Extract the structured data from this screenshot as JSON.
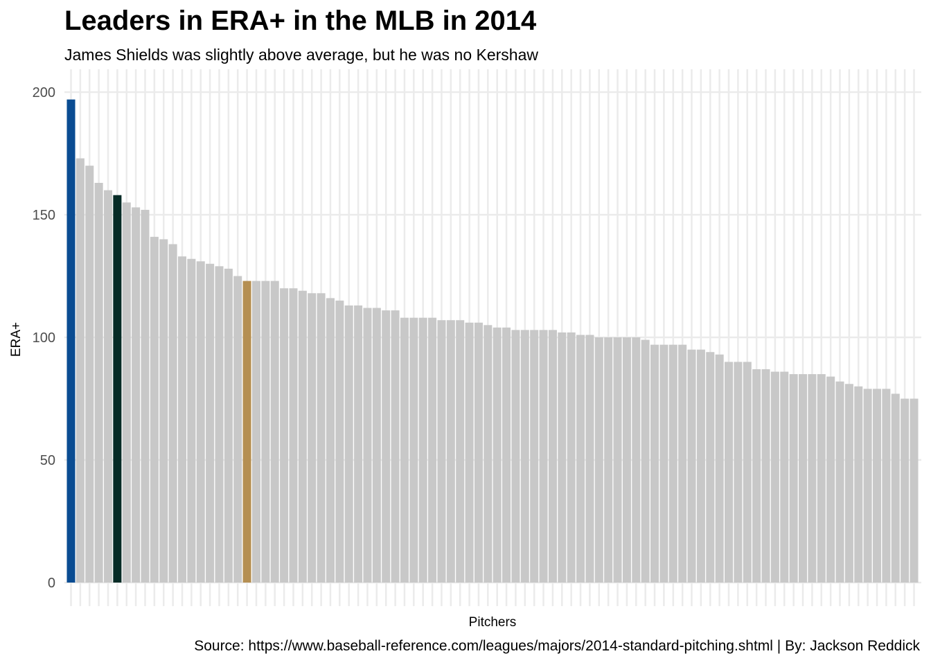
{
  "chart_data": {
    "type": "bar",
    "title": "Leaders in ERA+ in the MLB in 2014",
    "subtitle": "James Shields was slightly above average, but he was no Kershaw",
    "caption": "Source: https://www.baseball-reference.com/leagues/majors/2014-standard-pitching.shtml | By: Jackson Reddick",
    "xlabel": "Pitchers",
    "ylabel": "ERA+",
    "ylim": [
      0,
      205
    ],
    "yticks": [
      0,
      50,
      100,
      150,
      200
    ],
    "grid": true,
    "legend": "none",
    "default_color": "#c8c8c8",
    "highlight_colors": {
      "0": "#0a4c92",
      "5": "#062b26",
      "19": "#b58f52"
    },
    "values": [
      197,
      173,
      170,
      163,
      160,
      158,
      155,
      153,
      152,
      141,
      140,
      138,
      133,
      132,
      131,
      130,
      129,
      128,
      125,
      123,
      123,
      123,
      123,
      120,
      120,
      119,
      118,
      118,
      116,
      115,
      113,
      113,
      112,
      112,
      111,
      111,
      108,
      108,
      108,
      108,
      107,
      107,
      107,
      106,
      106,
      105,
      104,
      104,
      103,
      103,
      103,
      103,
      103,
      102,
      102,
      101,
      101,
      100,
      100,
      100,
      100,
      100,
      99,
      97,
      97,
      97,
      97,
      95,
      95,
      94,
      93,
      90,
      90,
      90,
      87,
      87,
      86,
      86,
      85,
      85,
      85,
      85,
      84,
      82,
      81,
      80,
      79,
      79,
      79,
      77,
      75,
      75
    ]
  }
}
